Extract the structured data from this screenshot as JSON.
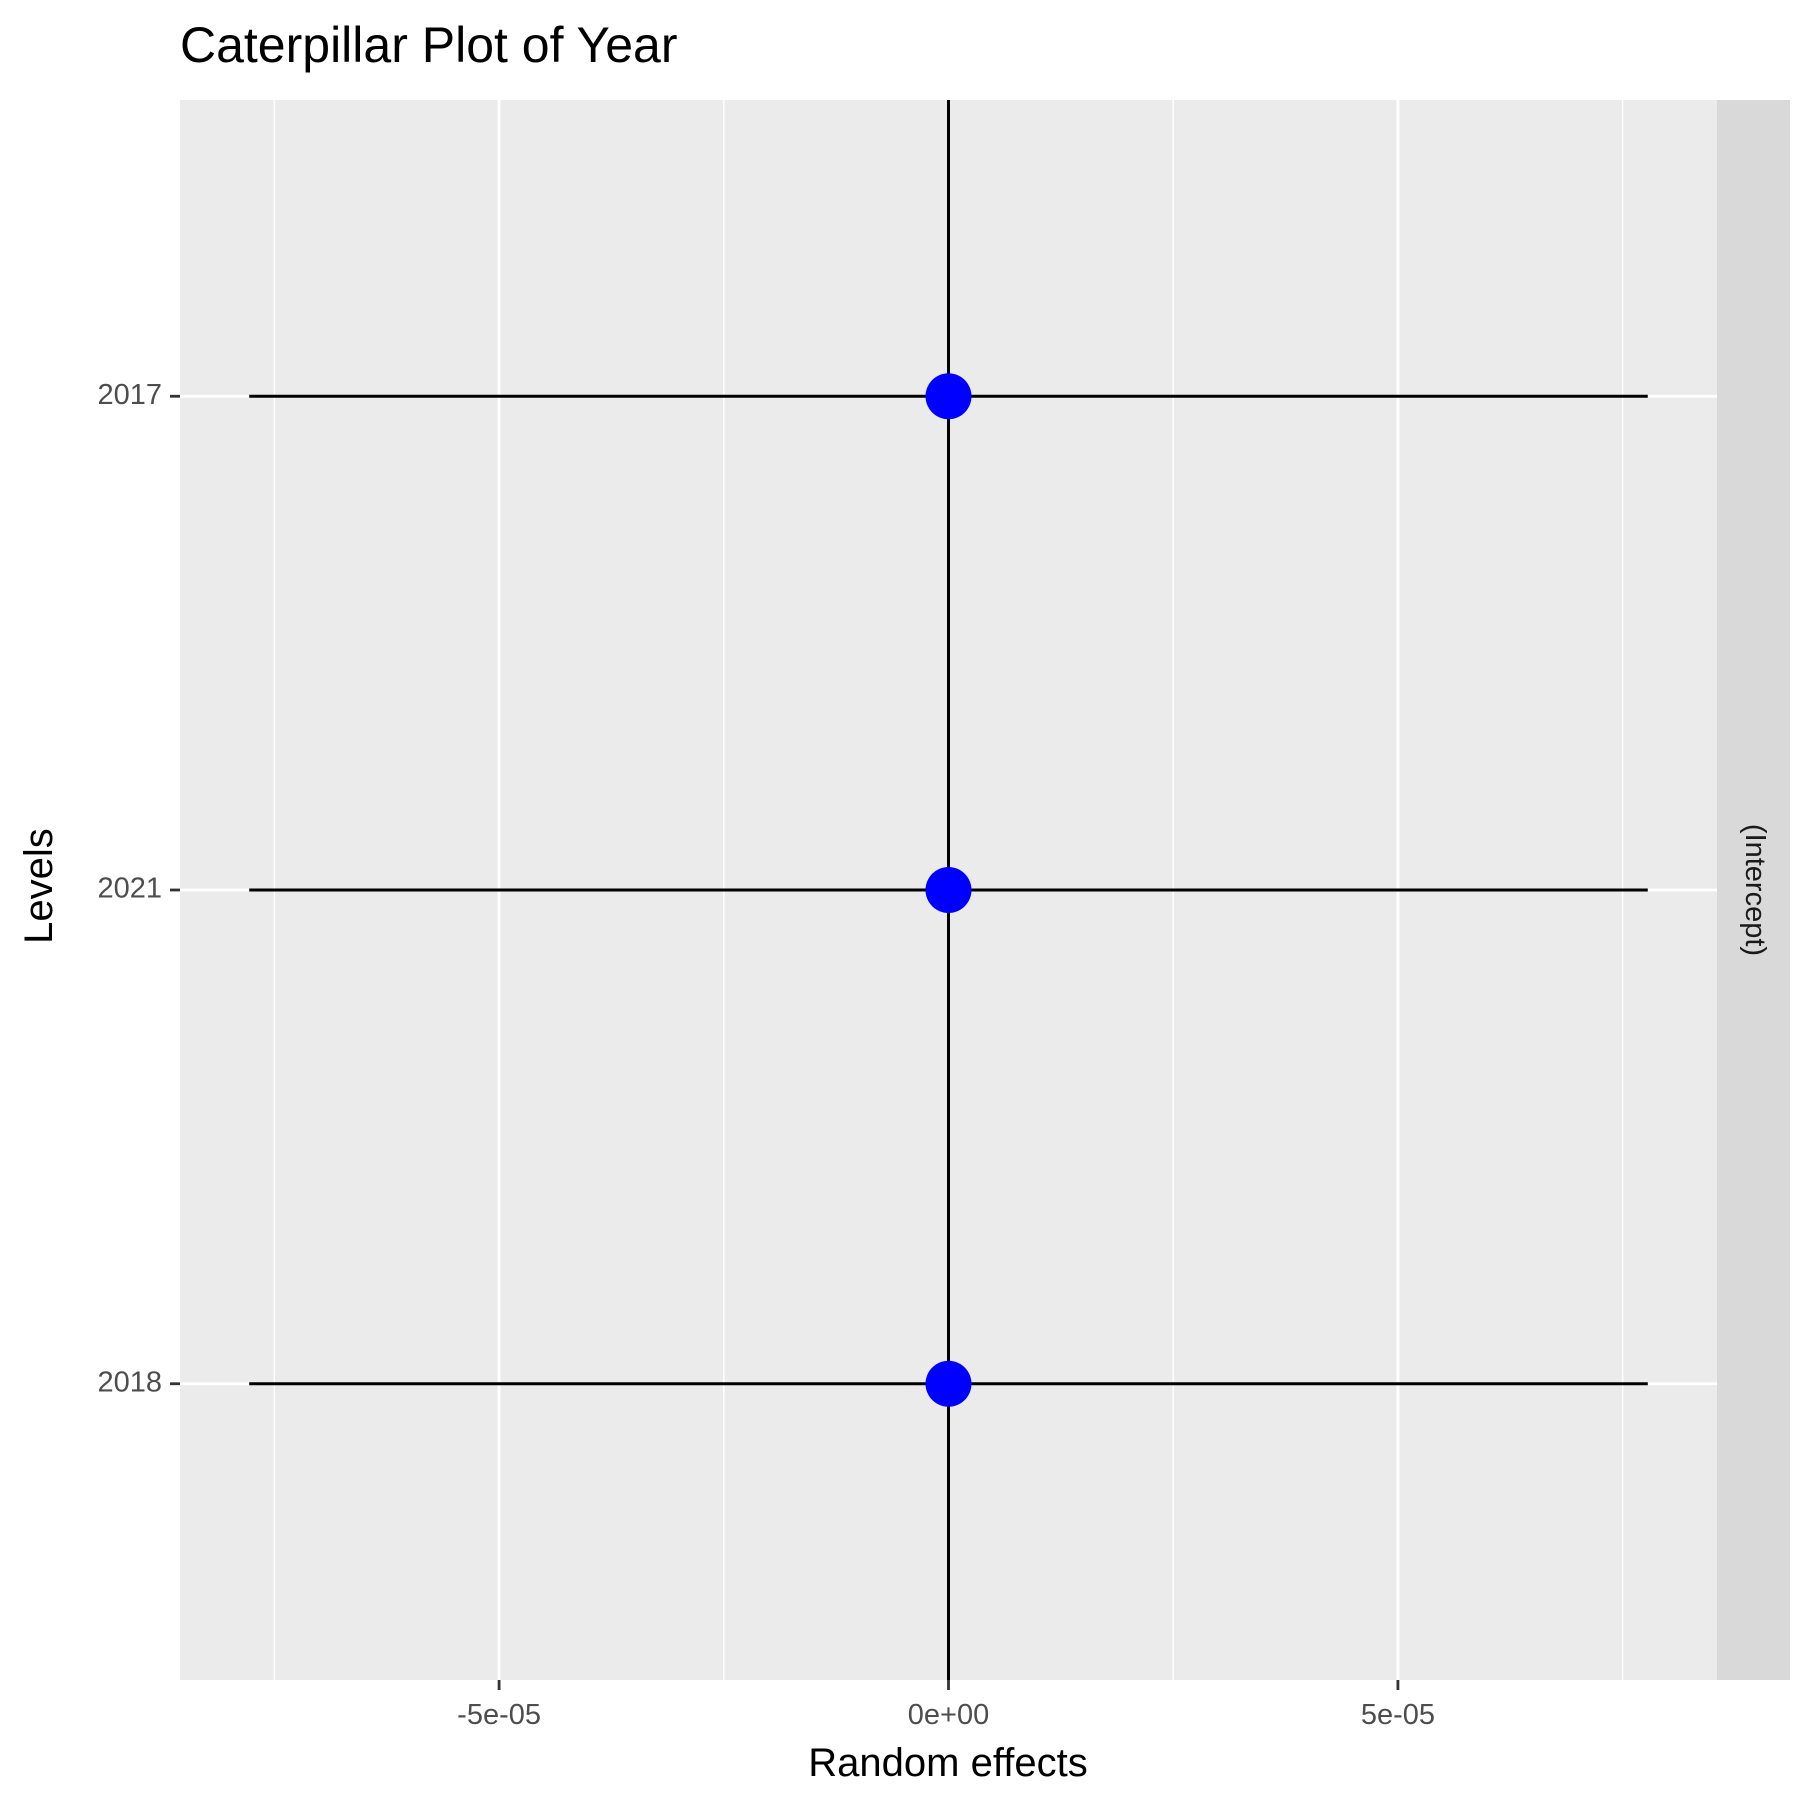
{
  "chart_data": {
    "type": "scatter",
    "title": "Caterpillar Plot of  Year",
    "xlabel": "Random effects",
    "ylabel": "Levels",
    "facet_label": "(Intercept)",
    "xlim": [
      -8.55e-05,
      8.55e-05
    ],
    "x_ticks": [
      {
        "value": -5e-05,
        "label": "-5e-05"
      },
      {
        "value": 0,
        "label": "0e+00"
      },
      {
        "value": 5e-05,
        "label": "5e-05"
      }
    ],
    "x_minor_ticks": [
      -7.5e-05,
      -2.5e-05,
      2.5e-05,
      7.5e-05
    ],
    "levels": [
      "2017",
      "2021",
      "2018"
    ],
    "points": [
      {
        "level": "2017",
        "estimate": 0,
        "lower": -7.78e-05,
        "upper": 7.78e-05
      },
      {
        "level": "2021",
        "estimate": 0,
        "lower": -7.78e-05,
        "upper": 7.78e-05
      },
      {
        "level": "2018",
        "estimate": 0,
        "lower": -7.78e-05,
        "upper": 7.78e-05
      }
    ],
    "reference_line_x": 0,
    "grid": true,
    "colors": {
      "panel_bg": "#ebebeb",
      "strip_bg": "#d9d9d9",
      "gridline": "#ffffff",
      "point": "#0000ff",
      "errorbar": "#000000",
      "reference_line": "#000000"
    }
  }
}
